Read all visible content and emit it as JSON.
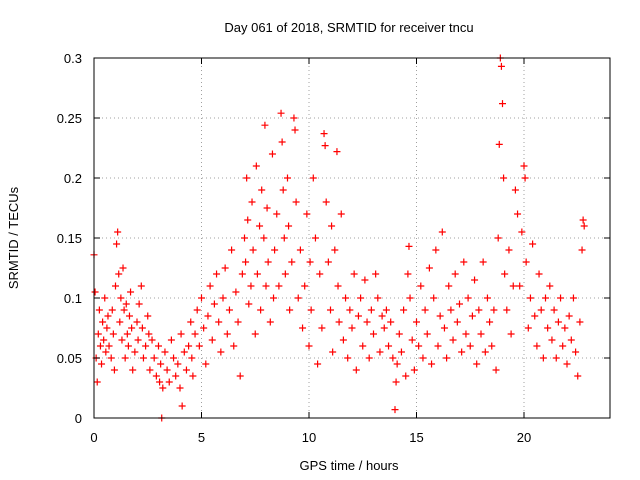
{
  "chart_data": {
    "type": "scatter",
    "title": "Day 061 of 2018, SRMTID for receiver tncu",
    "xlabel": "GPS time / hours",
    "ylabel": "SRMTID / TECUs",
    "xlim": [
      0,
      24
    ],
    "ylim": [
      0,
      0.3
    ],
    "x_ticks": [
      0,
      5,
      10,
      15,
      20
    ],
    "x_tick_labels": [
      "0",
      "5",
      "10",
      "15",
      "20"
    ],
    "y_ticks": [
      0,
      0.05,
      0.1,
      0.15,
      0.2,
      0.25,
      0.3
    ],
    "y_tick_labels": [
      "0",
      "0.05",
      "0.1",
      "0.15",
      "0.2",
      "0.25",
      "0.3"
    ],
    "grid": true,
    "marker": "plus",
    "color": "#ff0000",
    "series": [
      {
        "name": "SRMTID",
        "points": [
          [
            0.0,
            0.136
          ],
          [
            0.05,
            0.105
          ],
          [
            0.1,
            0.05
          ],
          [
            0.15,
            0.03
          ],
          [
            0.2,
            0.07
          ],
          [
            0.25,
            0.09
          ],
          [
            0.3,
            0.06
          ],
          [
            0.35,
            0.045
          ],
          [
            0.4,
            0.08
          ],
          [
            0.45,
            0.065
          ],
          [
            0.5,
            0.1
          ],
          [
            0.55,
            0.055
          ],
          [
            0.6,
            0.075
          ],
          [
            0.65,
            0.085
          ],
          [
            0.7,
            0.06
          ],
          [
            0.8,
            0.05
          ],
          [
            0.85,
            0.09
          ],
          [
            0.9,
            0.07
          ],
          [
            0.95,
            0.04
          ],
          [
            1.0,
            0.11
          ],
          [
            1.05,
            0.145
          ],
          [
            1.1,
            0.155
          ],
          [
            1.15,
            0.12
          ],
          [
            1.2,
            0.08
          ],
          [
            1.25,
            0.1
          ],
          [
            1.3,
            0.065
          ],
          [
            1.35,
            0.125
          ],
          [
            1.4,
            0.09
          ],
          [
            1.45,
            0.05
          ],
          [
            1.5,
            0.095
          ],
          [
            1.55,
            0.07
          ],
          [
            1.6,
            0.06
          ],
          [
            1.65,
            0.085
          ],
          [
            1.7,
            0.105
          ],
          [
            1.75,
            0.075
          ],
          [
            1.8,
            0.04
          ],
          [
            1.9,
            0.055
          ],
          [
            2.0,
            0.08
          ],
          [
            2.05,
            0.065
          ],
          [
            2.1,
            0.095
          ],
          [
            2.2,
            0.11
          ],
          [
            2.25,
            0.075
          ],
          [
            2.3,
            0.05
          ],
          [
            2.4,
            0.06
          ],
          [
            2.5,
            0.085
          ],
          [
            2.55,
            0.07
          ],
          [
            2.6,
            0.04
          ],
          [
            2.7,
            0.065
          ],
          [
            2.8,
            0.05
          ],
          [
            2.9,
            0.035
          ],
          [
            3.0,
            0.06
          ],
          [
            3.05,
            0.03
          ],
          [
            3.1,
            0.045
          ],
          [
            3.15,
            0.0
          ],
          [
            3.2,
            0.025
          ],
          [
            3.3,
            0.055
          ],
          [
            3.4,
            0.04
          ],
          [
            3.5,
            0.03
          ],
          [
            3.6,
            0.065
          ],
          [
            3.7,
            0.05
          ],
          [
            3.8,
            0.035
          ],
          [
            3.9,
            0.045
          ],
          [
            4.0,
            0.025
          ],
          [
            4.05,
            0.07
          ],
          [
            4.1,
            0.01
          ],
          [
            4.2,
            0.055
          ],
          [
            4.3,
            0.04
          ],
          [
            4.4,
            0.06
          ],
          [
            4.5,
            0.08
          ],
          [
            4.55,
            0.05
          ],
          [
            4.6,
            0.035
          ],
          [
            4.7,
            0.07
          ],
          [
            4.8,
            0.09
          ],
          [
            4.9,
            0.06
          ],
          [
            5.0,
            0.1
          ],
          [
            5.1,
            0.075
          ],
          [
            5.2,
            0.045
          ],
          [
            5.3,
            0.085
          ],
          [
            5.4,
            0.11
          ],
          [
            5.5,
            0.065
          ],
          [
            5.6,
            0.095
          ],
          [
            5.7,
            0.12
          ],
          [
            5.8,
            0.08
          ],
          [
            5.9,
            0.055
          ],
          [
            6.0,
            0.1
          ],
          [
            6.1,
            0.125
          ],
          [
            6.2,
            0.07
          ],
          [
            6.3,
            0.09
          ],
          [
            6.4,
            0.14
          ],
          [
            6.5,
            0.06
          ],
          [
            6.6,
            0.105
          ],
          [
            6.7,
            0.08
          ],
          [
            6.8,
            0.035
          ],
          [
            6.9,
            0.12
          ],
          [
            7.0,
            0.15
          ],
          [
            7.05,
            0.13
          ],
          [
            7.1,
            0.2
          ],
          [
            7.15,
            0.165
          ],
          [
            7.2,
            0.095
          ],
          [
            7.3,
            0.11
          ],
          [
            7.35,
            0.18
          ],
          [
            7.4,
            0.14
          ],
          [
            7.5,
            0.07
          ],
          [
            7.55,
            0.21
          ],
          [
            7.6,
            0.12
          ],
          [
            7.7,
            0.16
          ],
          [
            7.75,
            0.09
          ],
          [
            7.8,
            0.19
          ],
          [
            7.9,
            0.15
          ],
          [
            7.95,
            0.244
          ],
          [
            8.0,
            0.11
          ],
          [
            8.05,
            0.175
          ],
          [
            8.1,
            0.13
          ],
          [
            8.2,
            0.08
          ],
          [
            8.3,
            0.22
          ],
          [
            8.35,
            0.1
          ],
          [
            8.4,
            0.14
          ],
          [
            8.5,
            0.17
          ],
          [
            8.6,
            0.11
          ],
          [
            8.7,
            0.254
          ],
          [
            8.75,
            0.23
          ],
          [
            8.8,
            0.19
          ],
          [
            8.85,
            0.15
          ],
          [
            8.9,
            0.12
          ],
          [
            9.0,
            0.2
          ],
          [
            9.05,
            0.16
          ],
          [
            9.1,
            0.09
          ],
          [
            9.2,
            0.13
          ],
          [
            9.3,
            0.25
          ],
          [
            9.35,
            0.24
          ],
          [
            9.4,
            0.18
          ],
          [
            9.5,
            0.1
          ],
          [
            9.6,
            0.14
          ],
          [
            9.7,
            0.075
          ],
          [
            9.8,
            0.11
          ],
          [
            9.9,
            0.17
          ],
          [
            10.0,
            0.06
          ],
          [
            10.05,
            0.13
          ],
          [
            10.1,
            0.09
          ],
          [
            10.2,
            0.2
          ],
          [
            10.3,
            0.15
          ],
          [
            10.4,
            0.045
          ],
          [
            10.5,
            0.12
          ],
          [
            10.6,
            0.075
          ],
          [
            10.7,
            0.237
          ],
          [
            10.75,
            0.227
          ],
          [
            10.8,
            0.18
          ],
          [
            10.9,
            0.13
          ],
          [
            11.0,
            0.09
          ],
          [
            11.05,
            0.16
          ],
          [
            11.1,
            0.055
          ],
          [
            11.2,
            0.14
          ],
          [
            11.3,
            0.222
          ],
          [
            11.35,
            0.11
          ],
          [
            11.4,
            0.08
          ],
          [
            11.5,
            0.17
          ],
          [
            11.6,
            0.065
          ],
          [
            11.7,
            0.1
          ],
          [
            11.8,
            0.05
          ],
          [
            11.9,
            0.09
          ],
          [
            12.0,
            0.075
          ],
          [
            12.1,
            0.12
          ],
          [
            12.2,
            0.04
          ],
          [
            12.3,
            0.085
          ],
          [
            12.4,
            0.1
          ],
          [
            12.5,
            0.06
          ],
          [
            12.6,
            0.115
          ],
          [
            12.7,
            0.08
          ],
          [
            12.8,
            0.05
          ],
          [
            12.9,
            0.09
          ],
          [
            13.0,
            0.07
          ],
          [
            13.1,
            0.12
          ],
          [
            13.2,
            0.1
          ],
          [
            13.3,
            0.055
          ],
          [
            13.4,
            0.085
          ],
          [
            13.5,
            0.075
          ],
          [
            13.6,
            0.09
          ],
          [
            13.7,
            0.06
          ],
          [
            13.8,
            0.08
          ],
          [
            13.9,
            0.05
          ],
          [
            14.0,
            0.007
          ],
          [
            14.05,
            0.03
          ],
          [
            14.1,
            0.045
          ],
          [
            14.2,
            0.07
          ],
          [
            14.3,
            0.055
          ],
          [
            14.4,
            0.09
          ],
          [
            14.5,
            0.035
          ],
          [
            14.6,
            0.12
          ],
          [
            14.65,
            0.143
          ],
          [
            14.7,
            0.1
          ],
          [
            14.8,
            0.065
          ],
          [
            14.9,
            0.04
          ],
          [
            15.0,
            0.08
          ],
          [
            15.1,
            0.06
          ],
          [
            15.2,
            0.11
          ],
          [
            15.3,
            0.05
          ],
          [
            15.4,
            0.09
          ],
          [
            15.5,
            0.07
          ],
          [
            15.6,
            0.125
          ],
          [
            15.7,
            0.045
          ],
          [
            15.8,
            0.1
          ],
          [
            15.9,
            0.14
          ],
          [
            16.0,
            0.06
          ],
          [
            16.1,
            0.085
          ],
          [
            16.2,
            0.155
          ],
          [
            16.3,
            0.075
          ],
          [
            16.4,
            0.05
          ],
          [
            16.5,
            0.11
          ],
          [
            16.6,
            0.09
          ],
          [
            16.7,
            0.065
          ],
          [
            16.8,
            0.12
          ],
          [
            16.9,
            0.08
          ],
          [
            17.0,
            0.095
          ],
          [
            17.1,
            0.055
          ],
          [
            17.2,
            0.13
          ],
          [
            17.3,
            0.07
          ],
          [
            17.4,
            0.1
          ],
          [
            17.5,
            0.06
          ],
          [
            17.6,
            0.085
          ],
          [
            17.7,
            0.115
          ],
          [
            17.8,
            0.045
          ],
          [
            17.9,
            0.09
          ],
          [
            18.0,
            0.07
          ],
          [
            18.1,
            0.13
          ],
          [
            18.2,
            0.055
          ],
          [
            18.3,
            0.1
          ],
          [
            18.4,
            0.08
          ],
          [
            18.5,
            0.06
          ],
          [
            18.6,
            0.09
          ],
          [
            18.7,
            0.04
          ],
          [
            18.8,
            0.15
          ],
          [
            18.85,
            0.228
          ],
          [
            18.9,
            0.3
          ],
          [
            18.95,
            0.293
          ],
          [
            19.0,
            0.262
          ],
          [
            19.05,
            0.2
          ],
          [
            19.1,
            0.12
          ],
          [
            19.2,
            0.09
          ],
          [
            19.3,
            0.14
          ],
          [
            19.4,
            0.07
          ],
          [
            19.5,
            0.11
          ],
          [
            19.6,
            0.19
          ],
          [
            19.7,
            0.17
          ],
          [
            19.8,
            0.11
          ],
          [
            19.9,
            0.155
          ],
          [
            20.0,
            0.21
          ],
          [
            20.05,
            0.2
          ],
          [
            20.1,
            0.13
          ],
          [
            20.2,
            0.075
          ],
          [
            20.3,
            0.1
          ],
          [
            20.4,
            0.145
          ],
          [
            20.5,
            0.085
          ],
          [
            20.6,
            0.06
          ],
          [
            20.7,
            0.12
          ],
          [
            20.8,
            0.09
          ],
          [
            20.9,
            0.05
          ],
          [
            21.0,
            0.1
          ],
          [
            21.1,
            0.075
          ],
          [
            21.2,
            0.11
          ],
          [
            21.3,
            0.065
          ],
          [
            21.4,
            0.09
          ],
          [
            21.5,
            0.05
          ],
          [
            21.6,
            0.08
          ],
          [
            21.7,
            0.1
          ],
          [
            21.8,
            0.06
          ],
          [
            21.9,
            0.075
          ],
          [
            22.0,
            0.045
          ],
          [
            22.1,
            0.085
          ],
          [
            22.2,
            0.065
          ],
          [
            22.3,
            0.1
          ],
          [
            22.4,
            0.055
          ],
          [
            22.5,
            0.035
          ],
          [
            22.6,
            0.08
          ],
          [
            22.7,
            0.14
          ],
          [
            22.75,
            0.165
          ],
          [
            22.8,
            0.16
          ]
        ]
      }
    ]
  }
}
